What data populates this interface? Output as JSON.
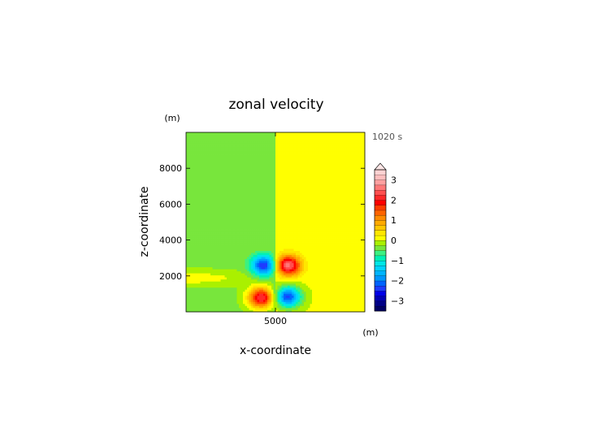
{
  "chart_data": {
    "type": "heatmap",
    "title": "zonal velocity",
    "xlabel": "x-coordinate",
    "ylabel": "z-coordinate",
    "x_unit": "(m)",
    "y_unit": "(m)",
    "time_label": "1020 s",
    "xlim": [
      0,
      10000
    ],
    "ylim": [
      0,
      10000
    ],
    "x_ticks": [
      5000
    ],
    "x_tick_labels": [
      "5000"
    ],
    "y_ticks": [
      2000,
      4000,
      6000,
      8000
    ],
    "y_tick_labels": [
      "2000",
      "4000",
      "6000",
      "8000"
    ],
    "background_field": {
      "x_less_than_5000": -0.3,
      "x_greater_than_5000": 0.05
    },
    "vortices": [
      {
        "x": 4350,
        "z": 2600,
        "peak": -2.2
      },
      {
        "x": 5700,
        "z": 2600,
        "peak": 2.6
      },
      {
        "x": 4200,
        "z": 800,
        "peak": 2.6
      },
      {
        "x": 5700,
        "z": 850,
        "peak": -2.4
      }
    ],
    "colorbar": {
      "levels": [
        -3.5,
        -3.25,
        -3,
        -2.75,
        -2.5,
        -2.25,
        -2,
        -1.75,
        -1.5,
        -1.25,
        -1,
        -0.75,
        -0.5,
        -0.25,
        0,
        0.25,
        0.5,
        0.75,
        1,
        1.25,
        1.5,
        1.75,
        2,
        2.25,
        2.5,
        2.75,
        3,
        3.25,
        3.5
      ],
      "colors": [
        "#000064",
        "#000087",
        "#0000b4",
        "#0000e6",
        "#1e3cff",
        "#0064ff",
        "#0096ff",
        "#00b4ff",
        "#00d2ff",
        "#00e6e6",
        "#00f0b4",
        "#3cf082",
        "#78e63c",
        "#aaf000",
        "#ffff00",
        "#ffe600",
        "#ffc800",
        "#ffaa00",
        "#ff8c00",
        "#ff6400",
        "#ff3c00",
        "#ff0000",
        "#ff2828",
        "#ff5050",
        "#ff7878",
        "#ffa0a0",
        "#ffbebe",
        "#ffd2d2"
      ],
      "tick_values": [
        3,
        2,
        1,
        0,
        -1,
        -2,
        -3
      ],
      "tick_labels": [
        "3",
        "2",
        "1",
        "0",
        "−1",
        "−2",
        "−3"
      ],
      "extend": "max"
    },
    "grid": false,
    "legend": "colorbar-right"
  }
}
